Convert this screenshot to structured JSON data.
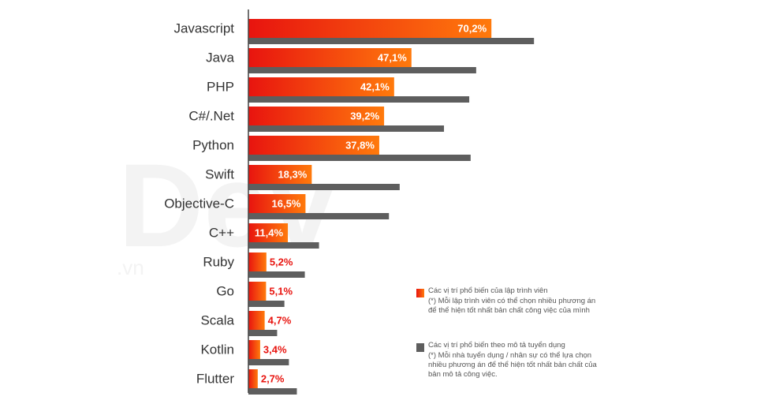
{
  "chart_data": {
    "type": "bar",
    "orientation": "horizontal",
    "categories": [
      "Javascript",
      "Java",
      "PHP",
      "C#/.Net",
      "Python",
      "Swift",
      "Objective-C",
      "C++",
      "Ruby",
      "Go",
      "Scala",
      "Kotlin",
      "Flutter"
    ],
    "series": [
      {
        "name": "Các vị trí phổ biến của lập trình viên",
        "note": "(*) Mỗi lập trình viên có thể chọn nhiều phương án để thể hiện tốt nhất bản chất công việc của mình",
        "values": [
          70.2,
          47.1,
          42.1,
          39.2,
          37.8,
          18.3,
          16.5,
          11.4,
          5.2,
          5.1,
          4.7,
          3.4,
          2.7
        ],
        "labels": [
          "70,2%",
          "47,1%",
          "42,1%",
          "39,2%",
          "37,8%",
          "18,3%",
          "16,5%",
          "11,4%",
          "5,2%",
          "5,1%",
          "4,7%",
          "3,4%",
          "2,7%"
        ],
        "color_start": "#e8140f",
        "color_end": "#ff7a0c"
      },
      {
        "name": "Các vị trí phổ biến theo mô tả tuyển dụng",
        "note": "(*) Mỗi nhà tuyển dụng / nhân sự có thể lựa chọn nhiều phương án để thể hiện tốt nhất bản chất của bản mô tả công việc.",
        "values": [
          82.5,
          65.8,
          63.8,
          56.5,
          64.2,
          43.7,
          40.6,
          20.4,
          16.3,
          10.4,
          8.3,
          11.7,
          14.0
        ],
        "color": "#5e5e5e"
      }
    ],
    "xlim": [
      0,
      100
    ],
    "value_label_color_inside": "#ffffff",
    "value_label_color_outside": "#e8140f",
    "watermark": "Dev",
    "watermark_suffix": ".vn",
    "legend_position": "bottom-right"
  }
}
